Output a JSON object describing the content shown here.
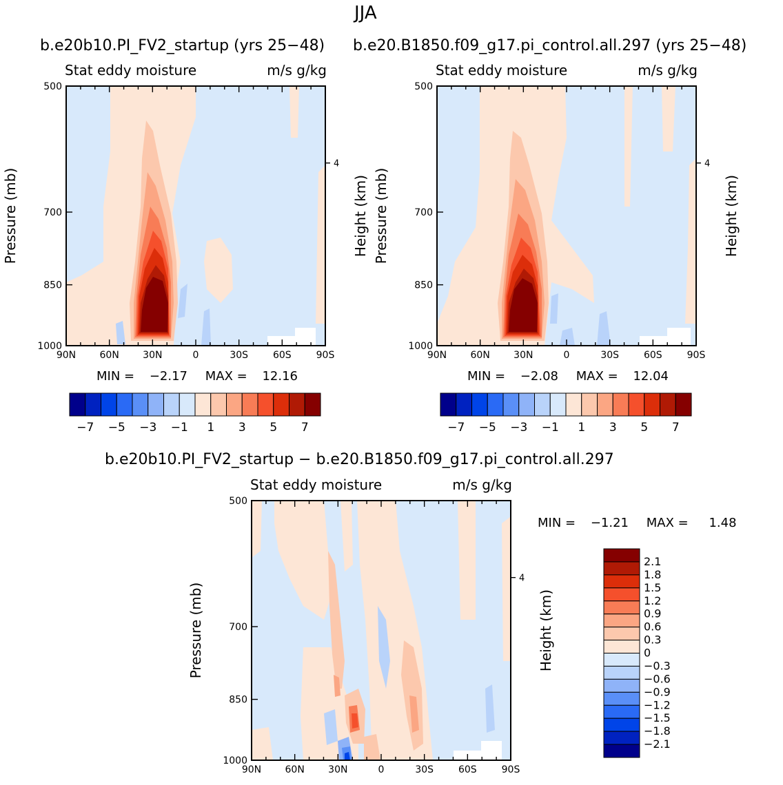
{
  "figure": {
    "title": "JJA",
    "difference_title": "b.e20b10.PI_FV2_startup − b.e20.B1850.f09_g17.pi_control.all.297"
  },
  "chart_data": [
    {
      "type": "heatmap",
      "run": "b.e20b10.PI_FV2_startup (yrs 25−48)",
      "variable": "Stat eddy moisture",
      "units": "m/s g/kg",
      "xlabel": "",
      "ylabel": "Pressure (mb)",
      "ylabel_right": "Height (km)",
      "x_ticks": [
        "90N",
        "60N",
        "30N",
        "0",
        "30S",
        "60S",
        "90S"
      ],
      "y_ticks": [
        500,
        700,
        850,
        1000
      ],
      "y_right_ticks": [
        4
      ],
      "ylim": [
        1000,
        500
      ],
      "min_label": "MIN =",
      "min": "−2.17",
      "max_label": "MAX =",
      "max": "12.16",
      "colorbar_levels": [
        "−7",
        "−5",
        "−3",
        "−1",
        "1",
        "3",
        "5",
        "7"
      ],
      "peak": {
        "lat": "25N",
        "pressure": 960,
        "value": 12.16
      }
    },
    {
      "type": "heatmap",
      "run": "b.e20.B1850.f09_g17.pi_control.all.297 (yrs 25−48)",
      "variable": "Stat eddy moisture",
      "units": "m/s g/kg",
      "xlabel": "",
      "ylabel": "Pressure (mb)",
      "ylabel_right": "Height (km)",
      "x_ticks": [
        "90N",
        "60N",
        "30N",
        "0",
        "30S",
        "60S",
        "90S"
      ],
      "y_ticks": [
        500,
        700,
        850,
        1000
      ],
      "y_right_ticks": [
        4
      ],
      "ylim": [
        1000,
        500
      ],
      "min_label": "MIN =",
      "min": "−2.08",
      "max_label": "MAX =",
      "max": "12.04",
      "colorbar_levels": [
        "−7",
        "−5",
        "−3",
        "−1",
        "1",
        "3",
        "5",
        "7"
      ],
      "peak": {
        "lat": "25N",
        "pressure": 960,
        "value": 12.04
      }
    },
    {
      "type": "heatmap",
      "run": "difference",
      "variable": "Stat eddy moisture",
      "units": "m/s g/kg",
      "xlabel": "",
      "ylabel": "Pressure (mb)",
      "ylabel_right": "Height (km)",
      "x_ticks": [
        "90N",
        "60N",
        "30N",
        "0",
        "30S",
        "60S",
        "90S"
      ],
      "y_ticks": [
        500,
        700,
        850,
        1000
      ],
      "y_right_ticks": [
        4
      ],
      "ylim": [
        1000,
        500
      ],
      "min_label": "MIN =",
      "min": "−1.21",
      "max_label": "MAX =",
      "max": "1.48",
      "colorbar_levels": [
        "2.1",
        "1.8",
        "1.5",
        "1.2",
        "0.9",
        "0.6",
        "0.3",
        "0",
        "−0.3",
        "−0.6",
        "−0.9",
        "−1.2",
        "−1.5",
        "−1.8",
        "−2.1"
      ]
    }
  ],
  "colors": {
    "abs_scale": [
      "#00008b",
      "#0022c0",
      "#0044e8",
      "#2a6af5",
      "#5a8ff7",
      "#8fb3f8",
      "#b9d3fa",
      "#d8e9fb",
      "#fde6d6",
      "#fcc8ad",
      "#fba683",
      "#f87c56",
      "#f5502c",
      "#dc2e0a",
      "#b01a05",
      "#850000"
    ],
    "diff_scale": [
      "#850000",
      "#b01a05",
      "#dc2e0a",
      "#f5502c",
      "#f87c56",
      "#fba683",
      "#fcc8ad",
      "#fde6d6",
      "#d8e9fb",
      "#b9d3fa",
      "#8fb3f8",
      "#5a8ff7",
      "#2a6af5",
      "#0044e8",
      "#0022c0",
      "#00008b"
    ]
  }
}
